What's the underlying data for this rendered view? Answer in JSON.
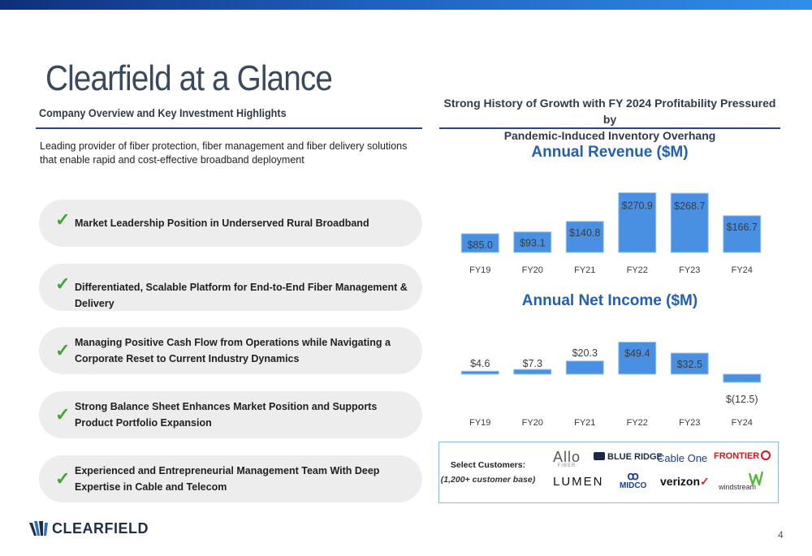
{
  "title": "Clearfield at a Glance",
  "left_heading": "Company Overview and Key Investment Highlights",
  "right_heading_line1": "Strong History of Growth with FY 2024 Profitability Pressured by",
  "right_heading_line2": "Pandemic-Induced Inventory Overhang",
  "intro": "Leading provider of fiber protection, fiber management and fiber delivery solutions that enable rapid and cost-effective broadband deployment",
  "check_glyph": "✓",
  "highlights": [
    {
      "text": "Market Leadership Position in Underserved Rural Broadband"
    },
    {
      "text": "Differentiated, Scalable Platform for End-to-End Fiber Management & Delivery"
    },
    {
      "text": "Managing Positive Cash Flow from Operations while Navigating a Corporate Reset to Current Industry Dynamics"
    },
    {
      "text": "Strong Balance Sheet Enhances Market Position and Supports Product Portfolio Expansion"
    },
    {
      "text": "Experienced and Entrepreneurial Management Team With Deep Expertise in Cable and Telecom"
    }
  ],
  "chart_data": [
    {
      "type": "bar",
      "title": "Annual Revenue ($M)",
      "categories": [
        "FY19",
        "FY20",
        "FY21",
        "FY22",
        "FY23",
        "FY24"
      ],
      "values": [
        85.0,
        93.1,
        140.8,
        270.9,
        268.7,
        166.7
      ],
      "labels": [
        "$85.0",
        "$93.1",
        "$140.8",
        "$270.9",
        "$268.7",
        "$166.7"
      ],
      "ylim": [
        0,
        280
      ],
      "color": "#4a90e2",
      "grid": false
    },
    {
      "type": "bar",
      "title": "Annual Net Income ($M)",
      "categories": [
        "FY19",
        "FY20",
        "FY21",
        "FY22",
        "FY23",
        "FY24"
      ],
      "values": [
        4.6,
        7.3,
        20.3,
        49.4,
        32.5,
        -12.5
      ],
      "labels": [
        "$4.6",
        "$7.3",
        "$20.3",
        "$49.4",
        "$32.5",
        "$(12.5)"
      ],
      "ylim": [
        -12.5,
        50
      ],
      "color": "#4a90e2",
      "grid": false
    }
  ],
  "customers": {
    "label": "Select Customers:",
    "sub": "(1,200+ customer base)",
    "logos": [
      "Allo",
      "BLUE RIDGE",
      "Cable One",
      "FRONTIER",
      "LUMEN",
      "MIDCO",
      "verizon",
      "windstream"
    ],
    "allo_sub": "FIBER",
    "verizon_mark": "✓"
  },
  "footer_brand": "CLEARFIELD",
  "page_number": "4",
  "colors": {
    "accent": "#2360b0",
    "bar": "#4a90e2",
    "check": "#3fa535",
    "rule": "#24487f"
  }
}
